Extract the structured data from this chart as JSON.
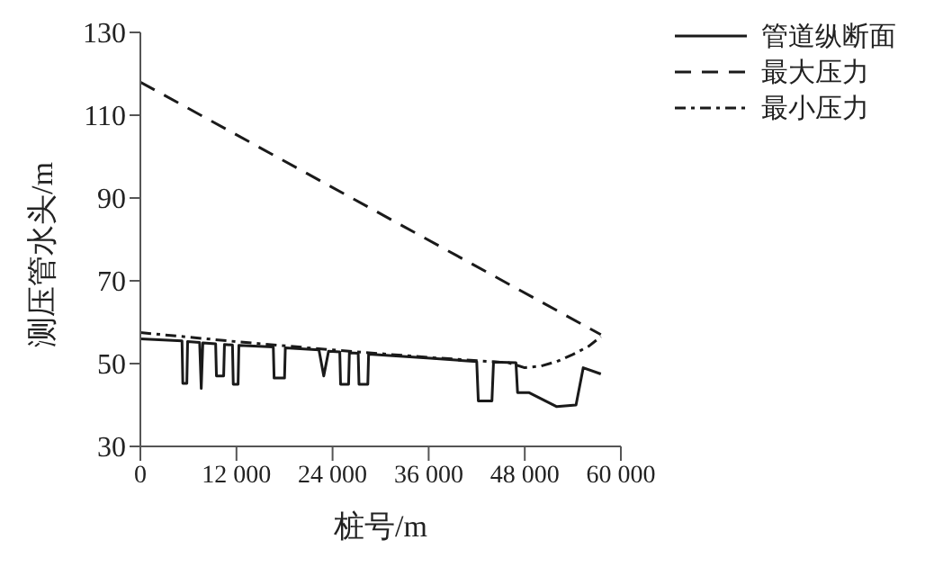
{
  "chart_data": {
    "type": "line",
    "xlabel": "桩号/m",
    "ylabel": "测压管水头/m",
    "xlim": [
      0,
      60000
    ],
    "ylim": [
      30,
      130
    ],
    "xticks": [
      {
        "value": 0,
        "label": "0"
      },
      {
        "value": 12000,
        "label": "12 000"
      },
      {
        "value": 24000,
        "label": "24 000"
      },
      {
        "value": 36000,
        "label": "36 000"
      },
      {
        "value": 48000,
        "label": "48 000"
      },
      {
        "value": 60000,
        "label": "60 000"
      }
    ],
    "yticks": [
      30,
      50,
      70,
      90,
      110,
      130
    ],
    "legend": "top right",
    "marker": "none",
    "series": [
      {
        "name": "管道纵断面",
        "color": "#1a1a1a",
        "line_style": "solid",
        "x": [
          0,
          5200,
          5300,
          5800,
          5900,
          7400,
          7600,
          7800,
          9400,
          9500,
          10400,
          10500,
          11500,
          11600,
          12200,
          12300,
          16600,
          16700,
          18000,
          18100,
          22300,
          22900,
          23500,
          24900,
          25000,
          26000,
          26100,
          27200,
          27300,
          28400,
          28500,
          36200,
          42000,
          42200,
          43900,
          44100,
          46900,
          47100,
          48500,
          52000,
          54400,
          55300,
          57500
        ],
        "values": [
          56,
          55.5,
          45.2,
          45.2,
          55.3,
          55.1,
          44,
          55,
          54.8,
          47,
          47,
          54.6,
          54.5,
          45,
          45,
          54.4,
          54,
          46.5,
          46.5,
          53.8,
          53.3,
          47,
          53,
          52.8,
          45,
          45,
          52.6,
          52.5,
          45,
          45,
          52.3,
          51.3,
          50.5,
          41,
          41,
          50.4,
          50.2,
          43,
          43,
          39.6,
          40,
          49,
          47.5
        ]
      },
      {
        "name": "最大压力",
        "color": "#1a1a1a",
        "line_style": "dashed",
        "x": [
          0,
          57500
        ],
        "values": [
          118,
          57
        ]
      },
      {
        "name": "最小压力",
        "color": "#1a1a1a",
        "line_style": "dashdot",
        "x": [
          0,
          12000,
          24000,
          36000,
          46000,
          48000,
          50000,
          52000,
          54000,
          56000,
          57500
        ],
        "values": [
          57.5,
          55.3,
          53.3,
          51.5,
          50.2,
          49,
          49.4,
          50.5,
          52.2,
          54.2,
          56.5
        ]
      }
    ]
  }
}
